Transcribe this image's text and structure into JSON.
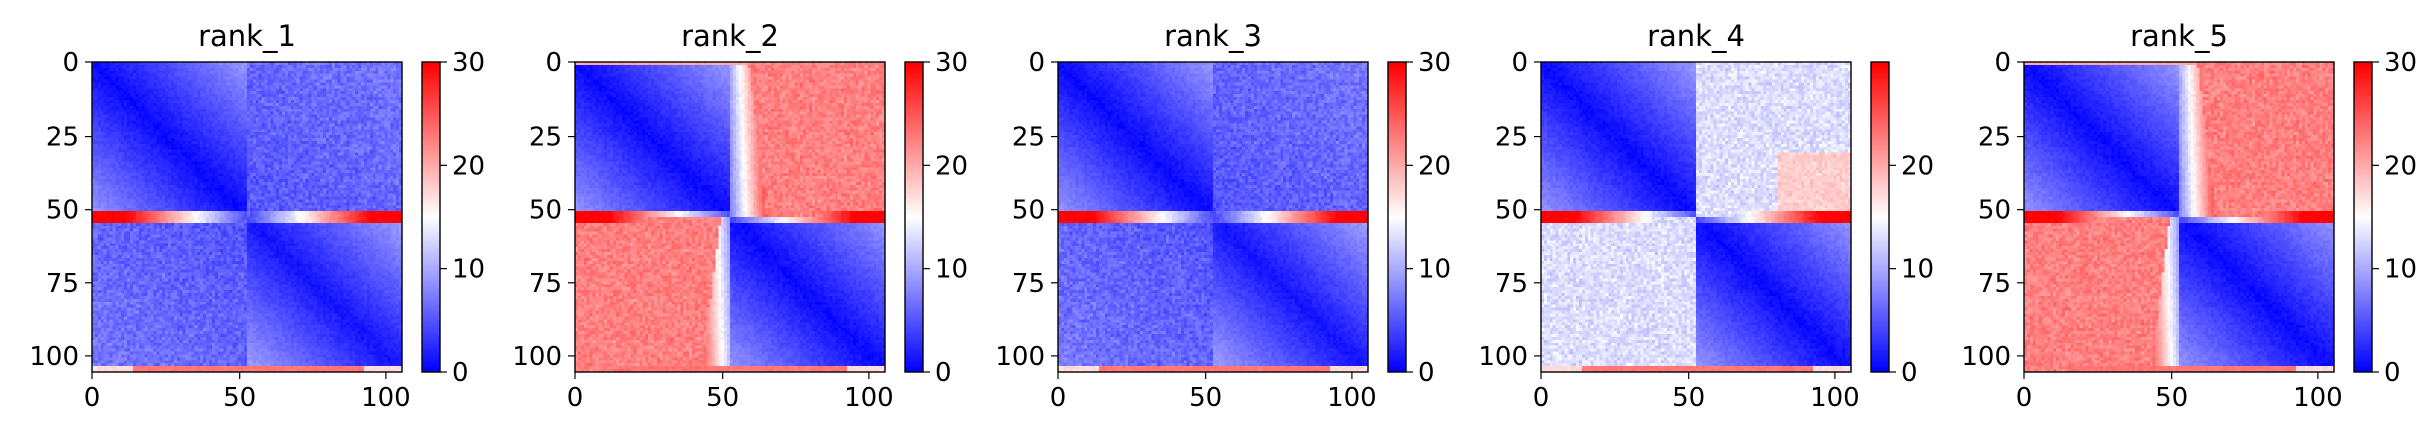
{
  "chart_data": {
    "type": "heatmap",
    "panels": [
      {
        "title": "rank_1",
        "pattern": "offdiag_low",
        "x_ticks": [
          "0",
          "50",
          "100"
        ],
        "y_ticks": [
          "0",
          "25",
          "50",
          "75",
          "100"
        ],
        "extent": [
          0,
          106
        ],
        "colorbar": {
          "ticks": [
            "0",
            "10",
            "20",
            "30"
          ],
          "range": [
            0,
            30
          ]
        }
      },
      {
        "title": "rank_2",
        "pattern": "offdiag_high",
        "x_ticks": [
          "0",
          "50",
          "100"
        ],
        "y_ticks": [
          "0",
          "25",
          "50",
          "75",
          "100"
        ],
        "extent": [
          0,
          106
        ],
        "colorbar": {
          "ticks": [
            "0",
            "10",
            "20",
            "30"
          ],
          "range": [
            0,
            30
          ]
        }
      },
      {
        "title": "rank_3",
        "pattern": "offdiag_low",
        "x_ticks": [
          "0",
          "50",
          "100"
        ],
        "y_ticks": [
          "0",
          "25",
          "50",
          "75",
          "100"
        ],
        "extent": [
          0,
          106
        ],
        "colorbar": {
          "ticks": [
            "0",
            "10",
            "20",
            "30"
          ],
          "range": [
            0,
            30
          ]
        }
      },
      {
        "title": "rank_4",
        "pattern": "offdiag_mid",
        "x_ticks": [
          "0",
          "50",
          "100"
        ],
        "y_ticks": [
          "0",
          "25",
          "50",
          "75",
          "100"
        ],
        "extent": [
          0,
          106
        ],
        "colorbar": {
          "ticks": [
            "0",
            "10",
            "20"
          ],
          "range": [
            0,
            30
          ]
        }
      },
      {
        "title": "rank_5",
        "pattern": "offdiag_high",
        "x_ticks": [
          "0",
          "50",
          "100"
        ],
        "y_ticks": [
          "0",
          "25",
          "50",
          "75",
          "100"
        ],
        "extent": [
          0,
          106
        ],
        "colorbar": {
          "ticks": [
            "0",
            "10",
            "20",
            "30"
          ],
          "range": [
            0,
            30
          ]
        }
      }
    ],
    "colormap": {
      "name": "bwr",
      "low": "#0000ff",
      "mid": "#ffffff",
      "high": "#ff0000"
    }
  }
}
